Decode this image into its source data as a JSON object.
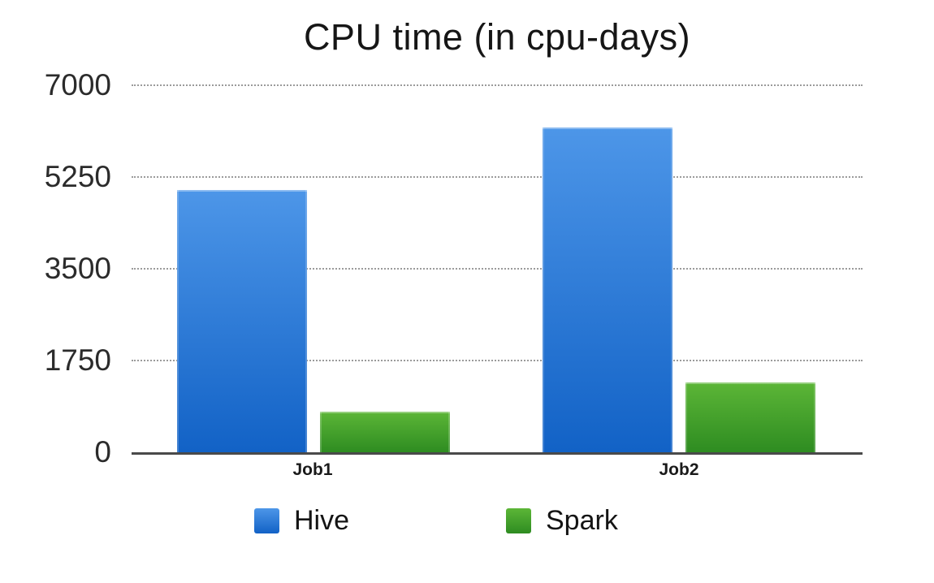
{
  "chart_data": {
    "type": "bar",
    "title": "CPU time (in cpu-days)",
    "categories": [
      "Job1",
      "Job2"
    ],
    "series": [
      {
        "name": "Hive",
        "values": [
          5000,
          6200
        ],
        "color_top": "#4d96e8",
        "color_bottom": "#1262c6"
      },
      {
        "name": "Spark",
        "values": [
          780,
          1330
        ],
        "color_top": "#5cb637",
        "color_bottom": "#2e8c21"
      }
    ],
    "xlabel": "",
    "ylabel": "",
    "ylim": [
      0,
      7000
    ],
    "yticks": [
      0,
      1750,
      3500,
      5250,
      7000
    ],
    "grid": "horizontal-dotted",
    "legend_position": "bottom"
  },
  "colors": {
    "gridline": "#9b9b9b",
    "axis_line": "#4a4a4a",
    "text": "#1a1a1a",
    "background": "#ffffff"
  }
}
